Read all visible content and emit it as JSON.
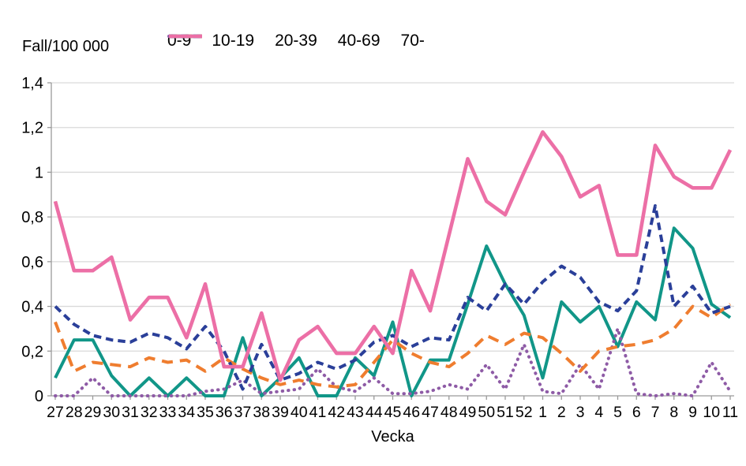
{
  "chart_data": {
    "type": "line",
    "title": "",
    "ylabel": "Fall/100 000",
    "xlabel": "Vecka",
    "ylim": [
      0,
      1.4
    ],
    "ytick_step": 0.2,
    "ytick_labels": [
      "0",
      "0,2",
      "0,4",
      "0,6",
      "0,8",
      "1",
      "1,2",
      "1,4"
    ],
    "grid": true,
    "legend_position": "top",
    "categories": [
      "27",
      "28",
      "29",
      "30",
      "31",
      "32",
      "33",
      "34",
      "35",
      "36",
      "37",
      "38",
      "39",
      "40",
      "41",
      "42",
      "43",
      "44",
      "45",
      "46",
      "47",
      "48",
      "49",
      "50",
      "51",
      "52",
      "1",
      "2",
      "3",
      "4",
      "5",
      "6",
      "7",
      "8",
      "9",
      "10",
      "11"
    ],
    "series": [
      {
        "name": "0-9",
        "color": "#119688",
        "style": "solid",
        "values": [
          0.08,
          0.25,
          0.25,
          0.09,
          0,
          0.08,
          0,
          0.08,
          0,
          0,
          0.26,
          0,
          0.08,
          0.17,
          0,
          0,
          0.17,
          0.09,
          0.33,
          0,
          0.16,
          0.16,
          0.41,
          0.67,
          0.5,
          0.36,
          0.08,
          0.42,
          0.33,
          0.4,
          0.22,
          0.42,
          0.34,
          0.75,
          0.66,
          0.41,
          0.35
        ]
      },
      {
        "name": "10-19",
        "color": "#8E5BA6",
        "style": "dotted",
        "values": [
          0,
          0,
          0.08,
          0,
          0,
          0,
          0,
          0,
          0.02,
          0.03,
          0.07,
          0.01,
          0.02,
          0.03,
          0.12,
          0.04,
          0.02,
          0.08,
          0.01,
          0.01,
          0.02,
          0.05,
          0.03,
          0.14,
          0.03,
          0.23,
          0.02,
          0.01,
          0.14,
          0.03,
          0.3,
          0.01,
          0,
          0.01,
          0,
          0.15,
          0.02
        ]
      },
      {
        "name": "20-39",
        "color": "#EF7D2F",
        "style": "dashed",
        "values": [
          0.33,
          0.11,
          0.15,
          0.14,
          0.13,
          0.17,
          0.15,
          0.16,
          0.11,
          0.17,
          0.12,
          0.08,
          0.05,
          0.07,
          0.05,
          0.04,
          0.05,
          0.15,
          0.25,
          0.19,
          0.15,
          0.13,
          0.19,
          0.27,
          0.23,
          0.28,
          0.26,
          0.19,
          0.11,
          0.2,
          0.22,
          0.23,
          0.25,
          0.3,
          0.4,
          0.35,
          0.41
        ]
      },
      {
        "name": "40-69",
        "color": "#2A3F99",
        "style": "dashed-dense",
        "values": [
          0.4,
          0.32,
          0.27,
          0.25,
          0.24,
          0.28,
          0.26,
          0.21,
          0.31,
          0.2,
          0.03,
          0.23,
          0.07,
          0.1,
          0.15,
          0.12,
          0.16,
          0.24,
          0.27,
          0.22,
          0.26,
          0.25,
          0.44,
          0.38,
          0.5,
          0.41,
          0.51,
          0.58,
          0.53,
          0.42,
          0.38,
          0.47,
          0.85,
          0.4,
          0.49,
          0.37,
          0.4
        ]
      },
      {
        "name": "70-",
        "color": "#EC6FA6",
        "style": "solid",
        "values": [
          0.87,
          0.56,
          0.56,
          0.62,
          0.34,
          0.44,
          0.44,
          0.26,
          0.5,
          0.13,
          0.13,
          0.37,
          0.07,
          0.25,
          0.31,
          0.19,
          0.19,
          0.31,
          0.19,
          0.56,
          0.38,
          0.72,
          1.06,
          0.87,
          0.81,
          1.0,
          1.18,
          1.07,
          0.89,
          0.94,
          0.63,
          0.63,
          1.12,
          0.98,
          0.93,
          0.93,
          1.1
        ]
      }
    ],
    "axis_color": "#9a9a9a",
    "grid_color": "#d9d9d9"
  }
}
